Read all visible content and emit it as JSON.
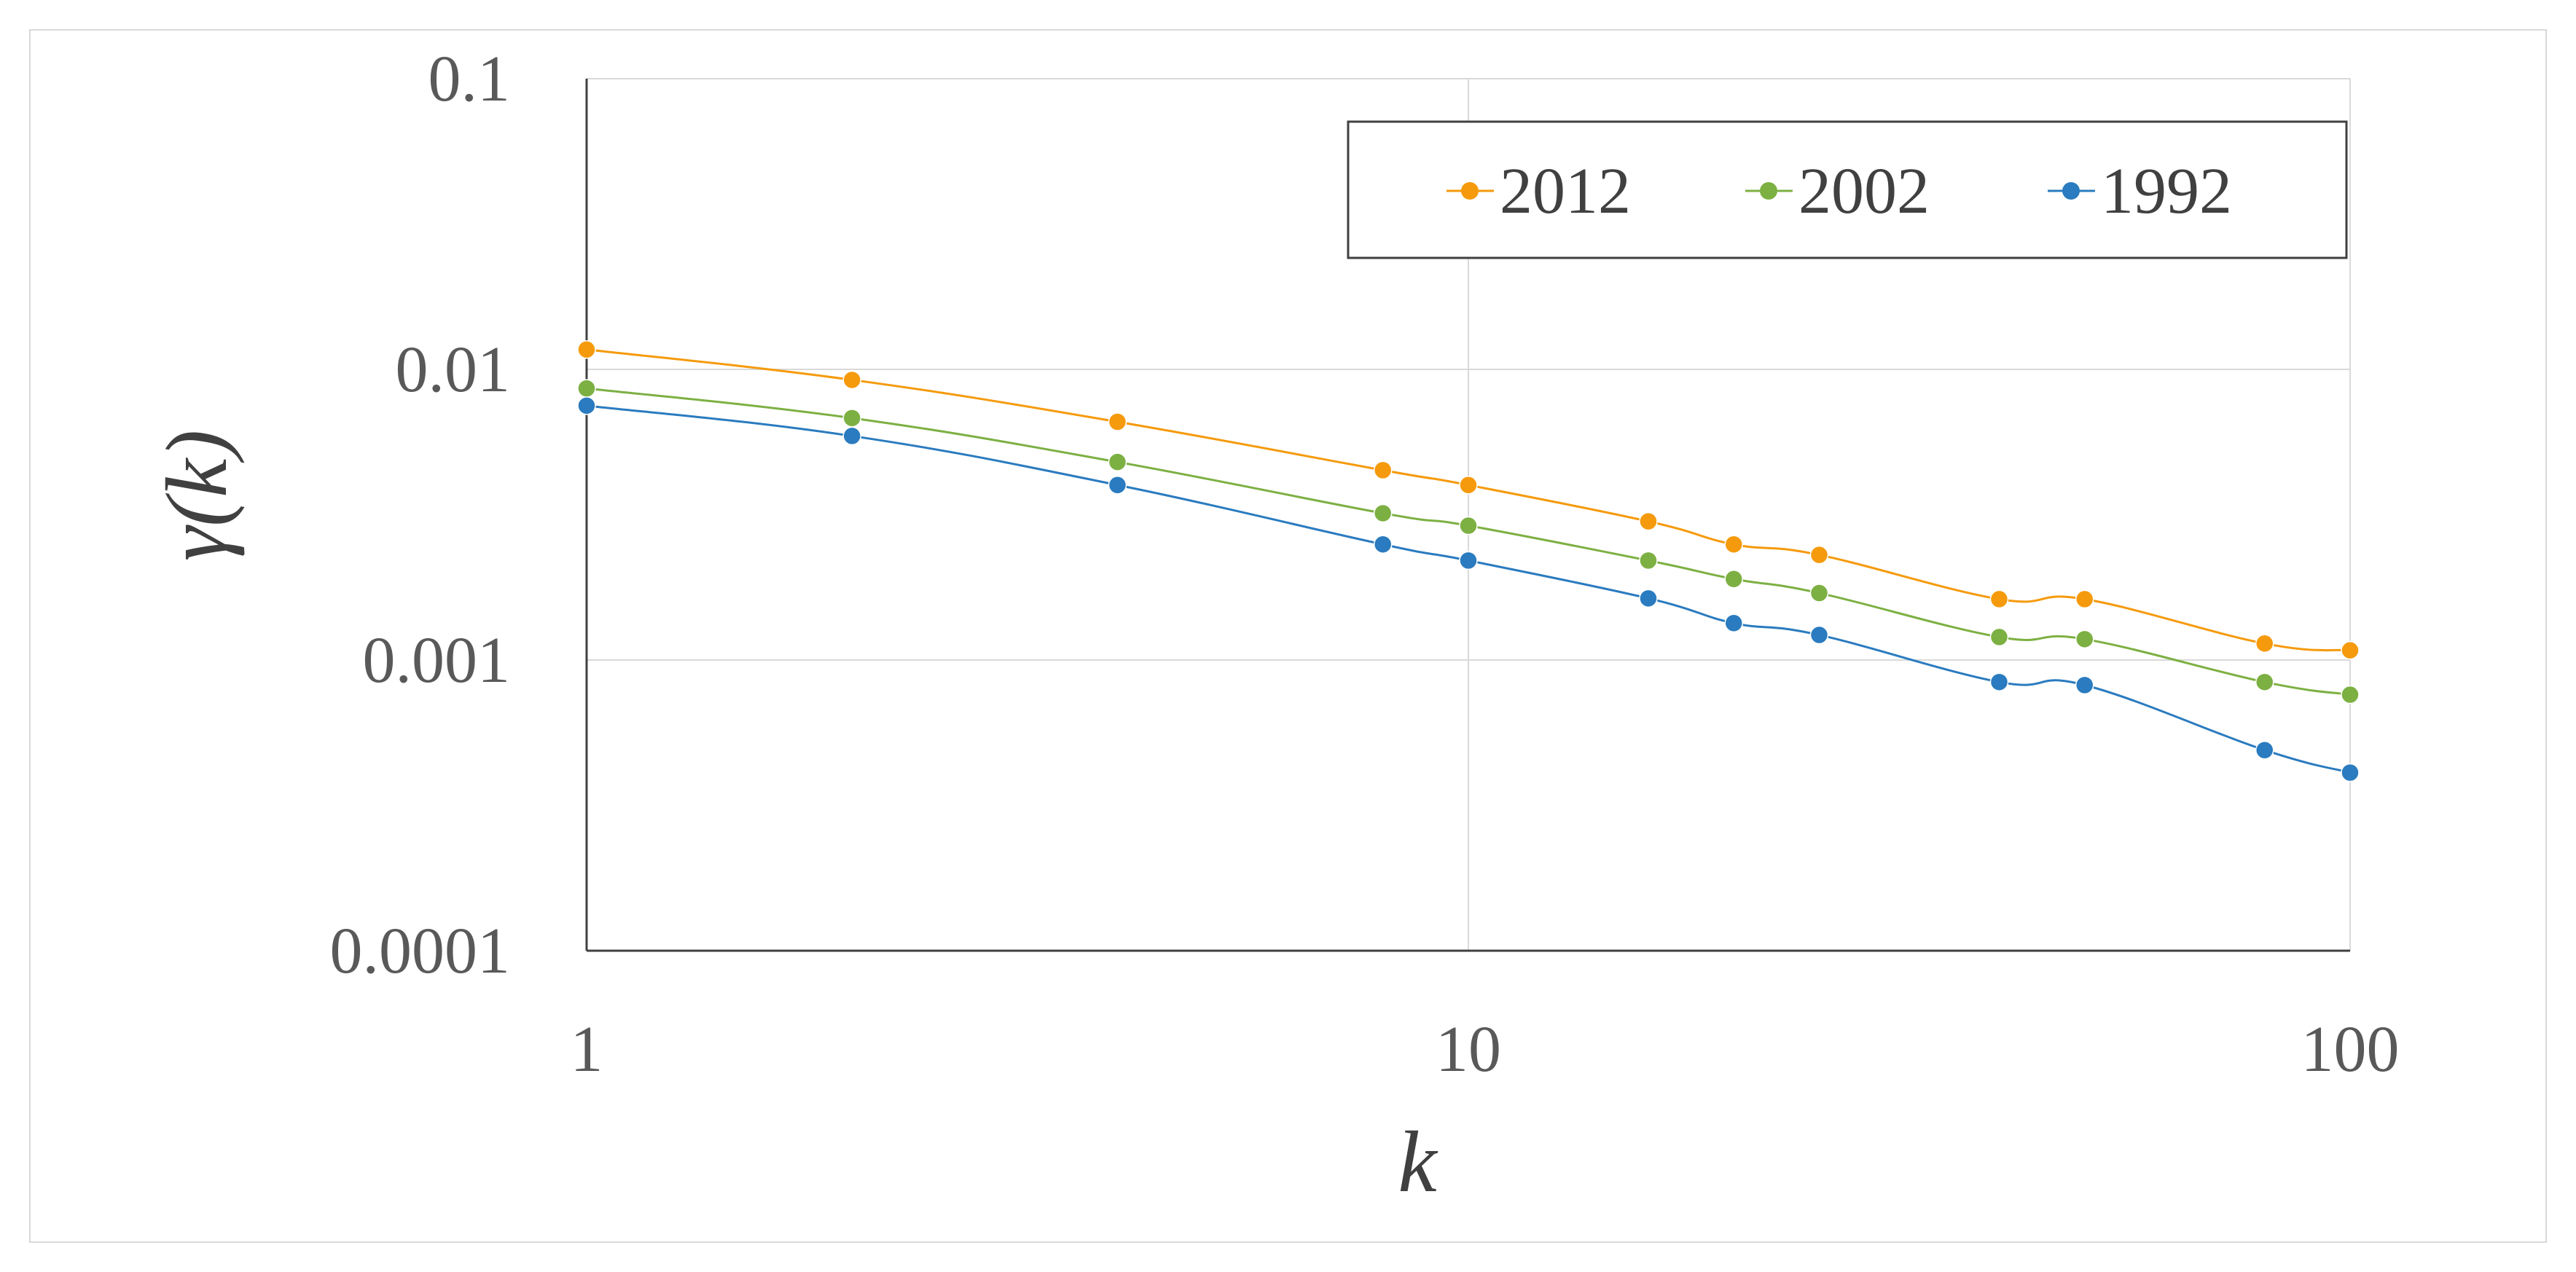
{
  "chart_data": {
    "type": "line",
    "xlabel": "k",
    "ylabel": "γ(k)",
    "xscale": "log",
    "yscale": "log",
    "xlim": [
      1,
      100
    ],
    "ylim": [
      0.0001,
      0.1
    ],
    "x_ticks": [
      "1",
      "10",
      "100"
    ],
    "y_ticks": [
      "0.1",
      "0.01",
      "0.001",
      "0.0001"
    ],
    "grid": true,
    "legend_position": "top-right",
    "x": [
      1,
      2,
      4,
      8,
      10,
      16,
      20,
      25,
      40,
      50,
      80,
      100
    ],
    "series": [
      {
        "name": "2012",
        "color": "#f59a0c",
        "values": [
          0.0117,
          0.0092,
          0.0066,
          0.0045,
          0.004,
          0.003,
          0.0025,
          0.0023,
          0.00162,
          0.00162,
          0.00114,
          0.00108
        ]
      },
      {
        "name": "2002",
        "color": "#7db043",
        "values": [
          0.0086,
          0.0068,
          0.0048,
          0.0032,
          0.0029,
          0.0022,
          0.0019,
          0.0017,
          0.0012,
          0.00118,
          0.00084,
          0.00076
        ]
      },
      {
        "name": "1992",
        "color": "#2a7bbf",
        "values": [
          0.0075,
          0.0059,
          0.004,
          0.0025,
          0.0022,
          0.00163,
          0.00134,
          0.00122,
          0.00084,
          0.00082,
          0.00049,
          0.00041
        ]
      }
    ]
  }
}
